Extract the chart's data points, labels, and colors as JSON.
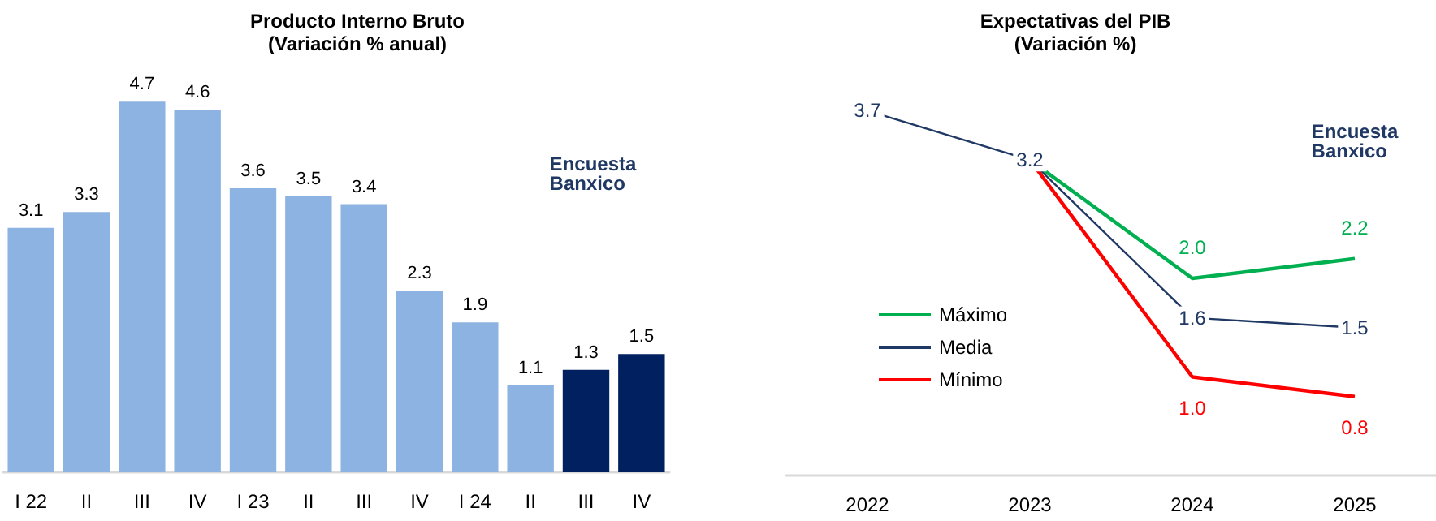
{
  "chart_data": [
    {
      "type": "bar",
      "title": "Producto Interno Bruto",
      "subtitle": "(Variación % anual)",
      "categories": [
        "I 22",
        "II",
        "III",
        "IV",
        "I 23",
        "II",
        "III",
        "IV",
        "I 24",
        "II",
        "III",
        "IV"
      ],
      "values": [
        3.1,
        3.3,
        4.7,
        4.6,
        3.6,
        3.5,
        3.4,
        2.3,
        1.9,
        1.1,
        1.3,
        1.5
      ],
      "colors": [
        "#8db3e2",
        "#8db3e2",
        "#8db3e2",
        "#8db3e2",
        "#8db3e2",
        "#8db3e2",
        "#8db3e2",
        "#8db3e2",
        "#8db3e2",
        "#8db3e2",
        "#002060",
        "#002060"
      ],
      "data_labels": true,
      "annotations": [
        "Encuesta Banxico"
      ]
    },
    {
      "type": "line",
      "title": "Expectativas del PIB",
      "subtitle": "(Variación %)",
      "categories": [
        "2022",
        "2023",
        "2024",
        "2025"
      ],
      "series": [
        {
          "name": "Máximo",
          "color": "#00b050",
          "values": [
            null,
            3.2,
            2.0,
            2.2
          ],
          "value_labels": [
            null,
            null,
            "2.0",
            "2.2"
          ]
        },
        {
          "name": "Media",
          "color": "#1f3864",
          "values": [
            3.7,
            3.2,
            1.6,
            1.5
          ],
          "value_labels": [
            "3.7",
            "3.2",
            "1.6",
            "1.5"
          ]
        },
        {
          "name": "Mínimo",
          "color": "#ff0000",
          "values": [
            null,
            3.2,
            1.0,
            0.8
          ],
          "value_labels": [
            null,
            null,
            "1.0",
            "0.8"
          ]
        }
      ],
      "legend": "left",
      "annotations": [
        "Encuesta Banxico"
      ]
    }
  ]
}
